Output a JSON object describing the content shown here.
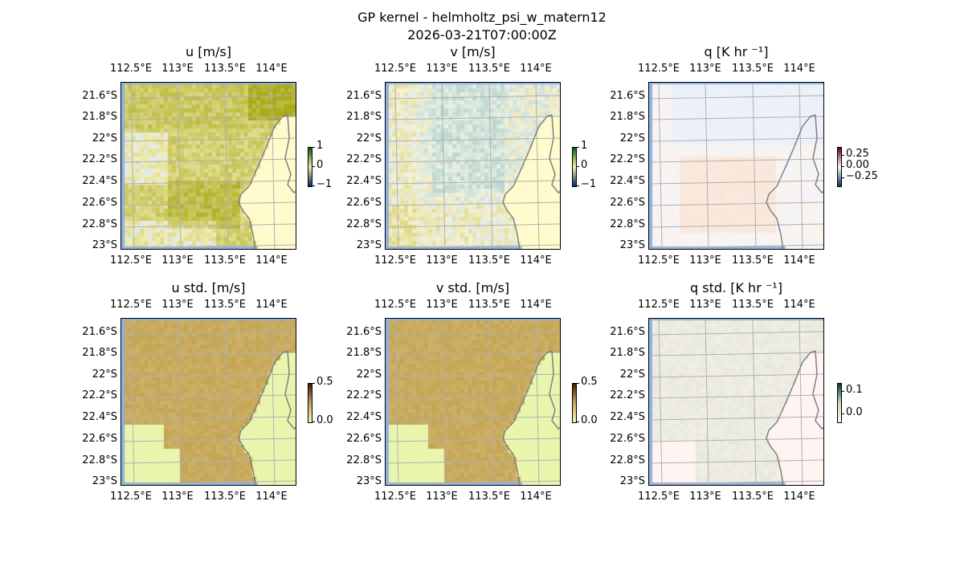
{
  "figure": {
    "title": "GP kernel - helmholtz_psi_w_matern12",
    "subtitle": "2026-03-21T07:00:00Z"
  },
  "lon_ticks": [
    "112.5°E",
    "113°E",
    "113.5°E",
    "114°E"
  ],
  "lat_ticks": [
    "21.6°S",
    "21.8°S",
    "22°S",
    "22.2°S",
    "22.4°S",
    "22.6°S",
    "22.8°S",
    "23°S"
  ],
  "panels": [
    {
      "title": "u [m/s]",
      "colorbar": {
        "ticks": [
          "1",
          "0",
          "−1"
        ],
        "colors": [
          "#002a66",
          "#f6f0a8",
          "#0b5a12"
        ]
      },
      "style": "u"
    },
    {
      "title": "v [m/s]",
      "colorbar": {
        "ticks": [
          "1",
          "0",
          "−1"
        ],
        "colors": [
          "#002a66",
          "#f6f0a8",
          "#0b5a12"
        ]
      },
      "style": "v"
    },
    {
      "title": "q [K hr ⁻¹]",
      "colorbar": {
        "ticks": [
          "0.25",
          "0.00",
          "−0.25"
        ],
        "colors": [
          "#08306b",
          "#f7f7f7",
          "#67000d"
        ]
      },
      "style": "q"
    },
    {
      "title": "u std. [m/s]",
      "colorbar": {
        "ticks": [
          "0.5",
          "0.0"
        ],
        "colors": [
          "#f4fab0",
          "#c9a55c",
          "#3a1f05"
        ]
      },
      "style": "us"
    },
    {
      "title": "v std. [m/s]",
      "colorbar": {
        "ticks": [
          "0.5",
          "0.0"
        ],
        "colors": [
          "#f4fab0",
          "#c9a55c",
          "#3a1f05"
        ]
      },
      "style": "us"
    },
    {
      "title": "q std. [K hr ⁻¹]",
      "colorbar": {
        "ticks": [
          "0.1",
          "0.0"
        ],
        "colors": [
          "#fff5f0",
          "#c8d8b8",
          "#004030"
        ]
      },
      "style": "qs"
    }
  ]
}
